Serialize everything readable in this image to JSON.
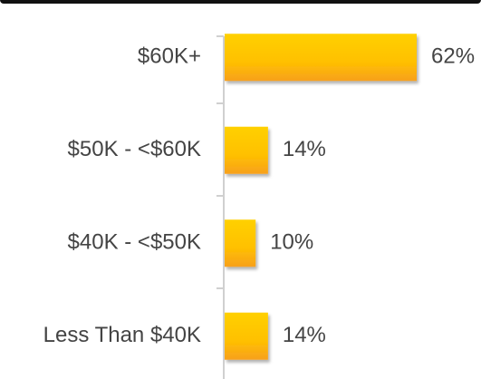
{
  "chart_data": {
    "type": "hbar",
    "categories": [
      "$60K+",
      "$50K - <$60K",
      "$40K - <$50K",
      "Less Than $40K"
    ],
    "values": [
      62,
      14,
      10,
      14
    ],
    "value_labels": [
      "62%",
      "14%",
      "10%",
      "14%"
    ],
    "color": "#ffc800"
  }
}
